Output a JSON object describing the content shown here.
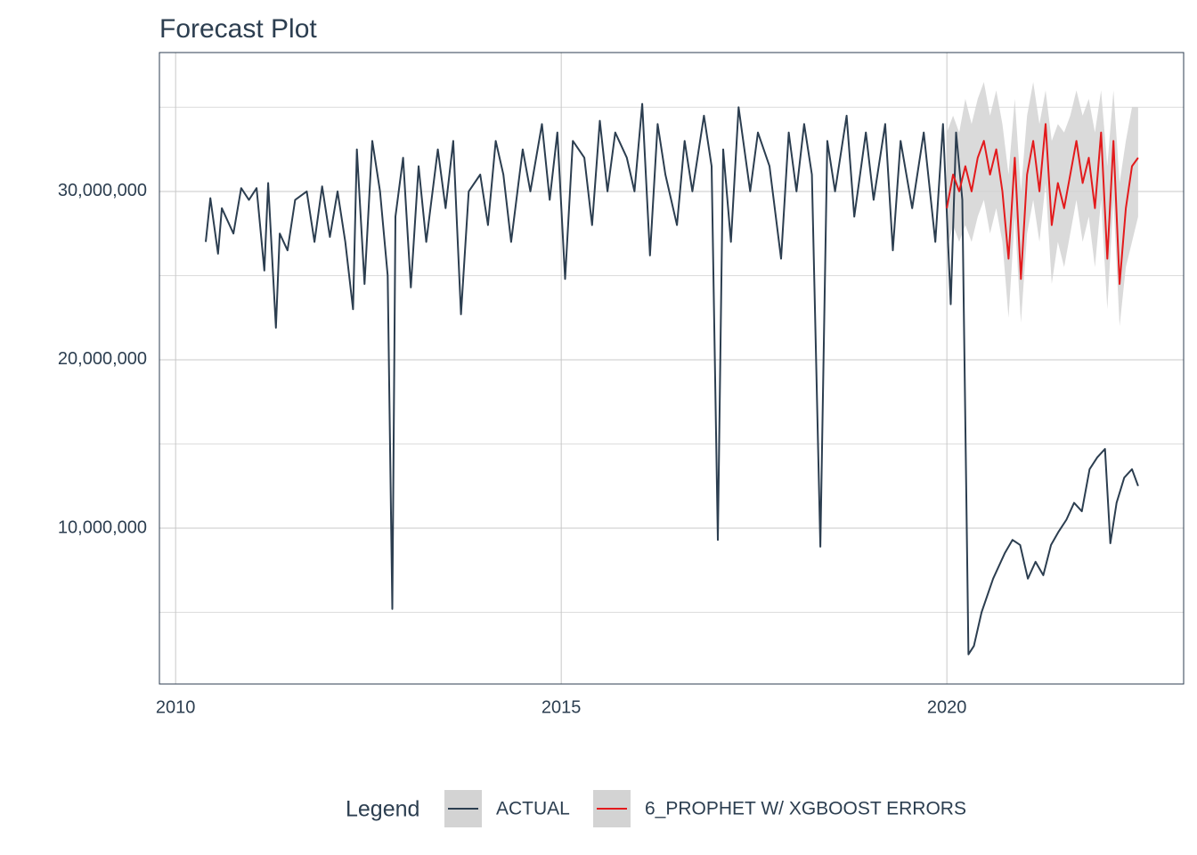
{
  "chart_data": {
    "type": "line",
    "title": "Forecast Plot",
    "legend_title": "Legend",
    "legend_position": "bottom",
    "grid": true,
    "xlim": [
      2009.79,
      2023.07
    ],
    "xticks": [
      2010,
      2015,
      2020
    ],
    "ylim": [
      740000,
      38250000
    ],
    "yticks": [
      {
        "value": 10000000,
        "label": "10,000,000"
      },
      {
        "value": 20000000,
        "label": "20,000,000"
      },
      {
        "value": 30000000,
        "label": "30,000,000"
      }
    ],
    "y_minor_ticks": [
      5000000,
      15000000,
      25000000,
      35000000
    ],
    "band_color": "#d3d3d3",
    "series": [
      {
        "name": "ACTUAL",
        "color": "#2c3e50",
        "x": [
          2010.39,
          2010.45,
          2010.55,
          2010.6,
          2010.75,
          2010.85,
          2010.95,
          2011.05,
          2011.15,
          2011.2,
          2011.3,
          2011.35,
          2011.45,
          2011.55,
          2011.7,
          2011.8,
          2011.9,
          2012.0,
          2012.1,
          2012.2,
          2012.3,
          2012.35,
          2012.45,
          2012.55,
          2012.65,
          2012.75,
          2012.81,
          2012.85,
          2012.95,
          2013.05,
          2013.15,
          2013.25,
          2013.4,
          2013.5,
          2013.6,
          2013.7,
          2013.8,
          2013.95,
          2014.05,
          2014.15,
          2014.25,
          2014.35,
          2014.5,
          2014.6,
          2014.75,
          2014.85,
          2014.95,
          2015.05,
          2015.15,
          2015.3,
          2015.4,
          2015.5,
          2015.6,
          2015.7,
          2015.85,
          2015.95,
          2016.05,
          2016.15,
          2016.25,
          2016.35,
          2016.5,
          2016.6,
          2016.7,
          2016.85,
          2016.95,
          2017.03,
          2017.1,
          2017.2,
          2017.3,
          2017.45,
          2017.55,
          2017.7,
          2017.85,
          2017.95,
          2018.05,
          2018.15,
          2018.25,
          2018.36,
          2018.45,
          2018.55,
          2018.7,
          2018.8,
          2018.95,
          2019.05,
          2019.2,
          2019.3,
          2019.4,
          2019.55,
          2019.7,
          2019.85,
          2019.95,
          2020.05,
          2020.12,
          2020.2,
          2020.28,
          2020.35,
          2020.45,
          2020.6,
          2020.75,
          2020.85,
          2020.95,
          2021.05,
          2021.15,
          2021.25,
          2021.35,
          2021.45,
          2021.55,
          2021.65,
          2021.75,
          2021.85,
          2021.95,
          2022.05,
          2022.12,
          2022.2,
          2022.3,
          2022.4,
          2022.48
        ],
        "values": [
          27000000,
          29600000,
          26300000,
          29000000,
          27500000,
          30200000,
          29500000,
          30200000,
          25300000,
          30500000,
          21900000,
          27500000,
          26500000,
          29500000,
          30000000,
          27000000,
          30300000,
          27300000,
          30000000,
          27000000,
          23000000,
          32500000,
          24500000,
          33000000,
          30000000,
          25000000,
          5200000,
          28500000,
          32000000,
          24300000,
          31500000,
          27000000,
          32500000,
          29000000,
          33000000,
          22700000,
          30000000,
          31000000,
          28000000,
          33000000,
          31000000,
          27000000,
          32500000,
          30000000,
          34000000,
          29500000,
          33500000,
          24800000,
          33000000,
          32000000,
          28000000,
          34200000,
          30000000,
          33500000,
          32000000,
          30000000,
          35200000,
          26200000,
          34000000,
          31000000,
          28000000,
          33000000,
          30000000,
          34500000,
          31500000,
          9300000,
          32500000,
          27000000,
          35000000,
          30000000,
          33500000,
          31500000,
          26000000,
          33500000,
          30000000,
          34000000,
          31000000,
          8900000,
          33000000,
          30000000,
          34500000,
          28500000,
          33500000,
          29500000,
          34000000,
          26500000,
          33000000,
          29000000,
          33500000,
          27000000,
          34000000,
          23300000,
          33500000,
          29500000,
          2500000,
          3000000,
          5000000,
          7000000,
          8500000,
          9300000,
          9000000,
          7000000,
          8000000,
          7200000,
          9000000,
          9800000,
          10500000,
          11500000,
          11000000,
          13500000,
          14200000,
          14700000,
          9100000,
          11500000,
          13000000,
          13500000,
          12500000
        ]
      },
      {
        "name": "6_PROPHET W/ XGBOOST ERRORS",
        "color": "#e31a1c",
        "x": [
          2020.0,
          2020.08,
          2020.16,
          2020.24,
          2020.32,
          2020.4,
          2020.48,
          2020.56,
          2020.64,
          2020.72,
          2020.8,
          2020.88,
          2020.96,
          2021.04,
          2021.12,
          2021.2,
          2021.28,
          2021.36,
          2021.44,
          2021.52,
          2021.6,
          2021.68,
          2021.76,
          2021.84,
          2021.92,
          2022.0,
          2022.08,
          2022.16,
          2022.24,
          2022.32,
          2022.4,
          2022.48
        ],
        "values": [
          29000000,
          31000000,
          30000000,
          31500000,
          30000000,
          32000000,
          33000000,
          31000000,
          32500000,
          30000000,
          26000000,
          32000000,
          24800000,
          31000000,
          33000000,
          30000000,
          34000000,
          28000000,
          30500000,
          29000000,
          31000000,
          33000000,
          30500000,
          32000000,
          29000000,
          33500000,
          26000000,
          33000000,
          24500000,
          29000000,
          31500000,
          32000000
        ],
        "upper": [
          33500000,
          34500000,
          33500000,
          35500000,
          34000000,
          35500000,
          36500000,
          34500000,
          36000000,
          34000000,
          31000000,
          35500000,
          30000000,
          34500000,
          36500000,
          34000000,
          36000000,
          33000000,
          34000000,
          33500000,
          34500000,
          36000000,
          34500000,
          35500000,
          33500000,
          36000000,
          31500000,
          36000000,
          30500000,
          33000000,
          35000000,
          35000000
        ],
        "lower": [
          26500000,
          28000000,
          27000000,
          28000000,
          27000000,
          28500000,
          29500000,
          27500000,
          29000000,
          27000000,
          22500000,
          28500000,
          22200000,
          27500000,
          29500000,
          27000000,
          30500000,
          24500000,
          27000000,
          25500000,
          27500000,
          29500000,
          27000000,
          28500000,
          25500000,
          29500000,
          23000000,
          29500000,
          22000000,
          25500000,
          27000000,
          28500000
        ]
      }
    ]
  }
}
